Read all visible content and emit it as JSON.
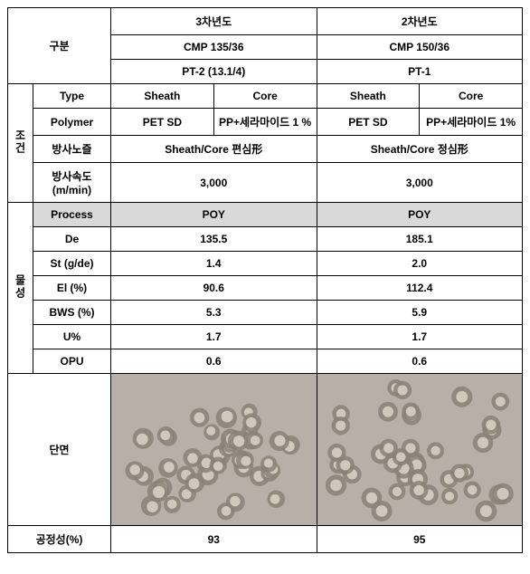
{
  "header": {
    "gubun": "구분",
    "year3": "3차년도",
    "year2": "2차년도",
    "cmp3": "CMP 135/36",
    "cmp2": "CMP 150/36",
    "pt3": "PT-2 (13.1/4)",
    "pt2": "PT-1"
  },
  "cond": {
    "section": "조건",
    "type_label": "Type",
    "sheath": "Sheath",
    "core": "Core",
    "polymer_label": "Polymer",
    "polymer_sheath": "PET SD",
    "polymer_core3": "PP+세라마이드 1 %",
    "polymer_core2": "PP+세라마이드 1%",
    "nozzle_label": "방사노즐",
    "nozzle3": "Sheath/Core 편심形",
    "nozzle2": "Sheath/Core 정심形",
    "speed_label": "방사속도\n(m/min)",
    "speed3": "3,000",
    "speed2": "3,000"
  },
  "prop": {
    "section": "물성",
    "process_label": "Process",
    "process3": "POY",
    "process2": "POY",
    "de_label": "De",
    "de3": "135.5",
    "de2": "185.1",
    "st_label": "St (g/de)",
    "st3": "1.4",
    "st2": "2.0",
    "el_label": "El (%)",
    "el3": "90.6",
    "el2": "112.4",
    "bws_label": "BWS (%)",
    "bws3": "5.3",
    "bws2": "5.9",
    "u_label": "U%",
    "u3": "1.7",
    "u2": "1.7",
    "opu_label": "OPU",
    "opu3": "0.6",
    "opu2": "0.6"
  },
  "cross": {
    "label": "단면"
  },
  "fairness": {
    "label": "공정성(%)",
    "v3": "93",
    "v2": "95"
  },
  "style": {
    "gray": "#d9d9d9",
    "border": "#000000",
    "font_size": 12,
    "font_weight": "bold"
  },
  "images": {
    "note": "two grayscale micrographs of fiber cross-sections; left image shows clustered hollow circular fibers (eccentric sheath/core), right image shows similar hollow circles more regularly distributed (concentric sheath/core). Rendered here as procedural SVG approximations.",
    "bg": "#b8b0a8",
    "ring_outer": "#8a8278",
    "ring_inner": "#d0c8bc"
  }
}
